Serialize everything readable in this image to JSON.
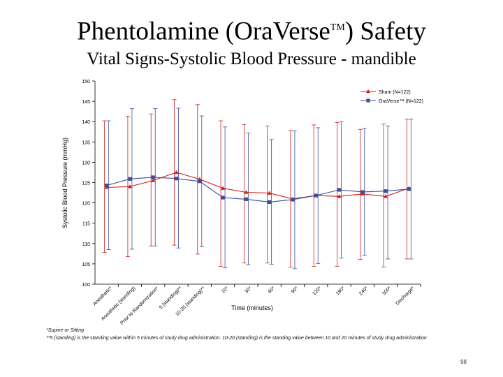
{
  "slide": {
    "title_main": "Phentolamine (OraVerse",
    "title_tm": "TM",
    "title_end": ") Safety",
    "subtitle": "Vital Signs-Systolic Blood Pressure - mandible",
    "footnote1": "*Supine or Sitting",
    "footnote2": "**5 (standing) is the standing value within 5 minutes of study drug administration.  10-20 (standing) is the standing value between 10 and 20 minutes of study drug administration",
    "page_number": "98"
  },
  "chart_data": {
    "type": "line",
    "title": "",
    "xlabel": "Time (minutes)",
    "ylabel": "Systolic Blood Pressure (mmHg)",
    "ylim": [
      100,
      150
    ],
    "yticks": [
      100,
      105,
      110,
      115,
      120,
      125,
      130,
      135,
      140,
      145,
      150
    ],
    "grid": false,
    "legend_position": "top-right",
    "categories": [
      "Anesthetic*",
      "Anesthetic (standing)",
      "Prior to Randomization*",
      "5 (standing)**",
      "10-20 (standing)**",
      "10*",
      "30*",
      "60*",
      "90*",
      "120*",
      "180*",
      "240*",
      "300*",
      "Discharge*"
    ],
    "series": [
      {
        "name": "Sham (N=122)",
        "color": "#cc2222",
        "marker": "triangle",
        "values": [
          123.8,
          124.0,
          125.5,
          127.5,
          125.8,
          123.6,
          122.6,
          122.4,
          121.0,
          121.8,
          121.6,
          122.2,
          121.6,
          123.6
        ],
        "upper": [
          140.2,
          141.3,
          141.9,
          145.4,
          144.2,
          140.2,
          139.3,
          138.9,
          137.8,
          139.2,
          139.8,
          138.1,
          139.4,
          140.6
        ],
        "lower": [
          107.8,
          106.8,
          109.4,
          109.6,
          107.4,
          104.4,
          105.2,
          105.2,
          104.2,
          104.4,
          104.4,
          106.1,
          104.2,
          106.2
        ]
      },
      {
        "name": "OraVerse™ (N=122)",
        "color": "#3a4f9a",
        "marker": "square",
        "values": [
          124.3,
          125.9,
          126.3,
          126.0,
          125.3,
          121.3,
          120.9,
          120.2,
          120.8,
          121.8,
          123.2,
          122.7,
          122.9,
          123.4
        ],
        "upper": [
          140.2,
          143.2,
          143.2,
          143.3,
          141.4,
          138.7,
          137.2,
          135.6,
          137.7,
          138.5,
          140.0,
          138.3,
          138.9,
          140.6
        ],
        "lower": [
          108.5,
          108.6,
          109.4,
          108.9,
          109.2,
          104.0,
          104.8,
          104.9,
          103.8,
          105.1,
          106.4,
          107.1,
          106.2,
          106.2
        ]
      }
    ]
  }
}
